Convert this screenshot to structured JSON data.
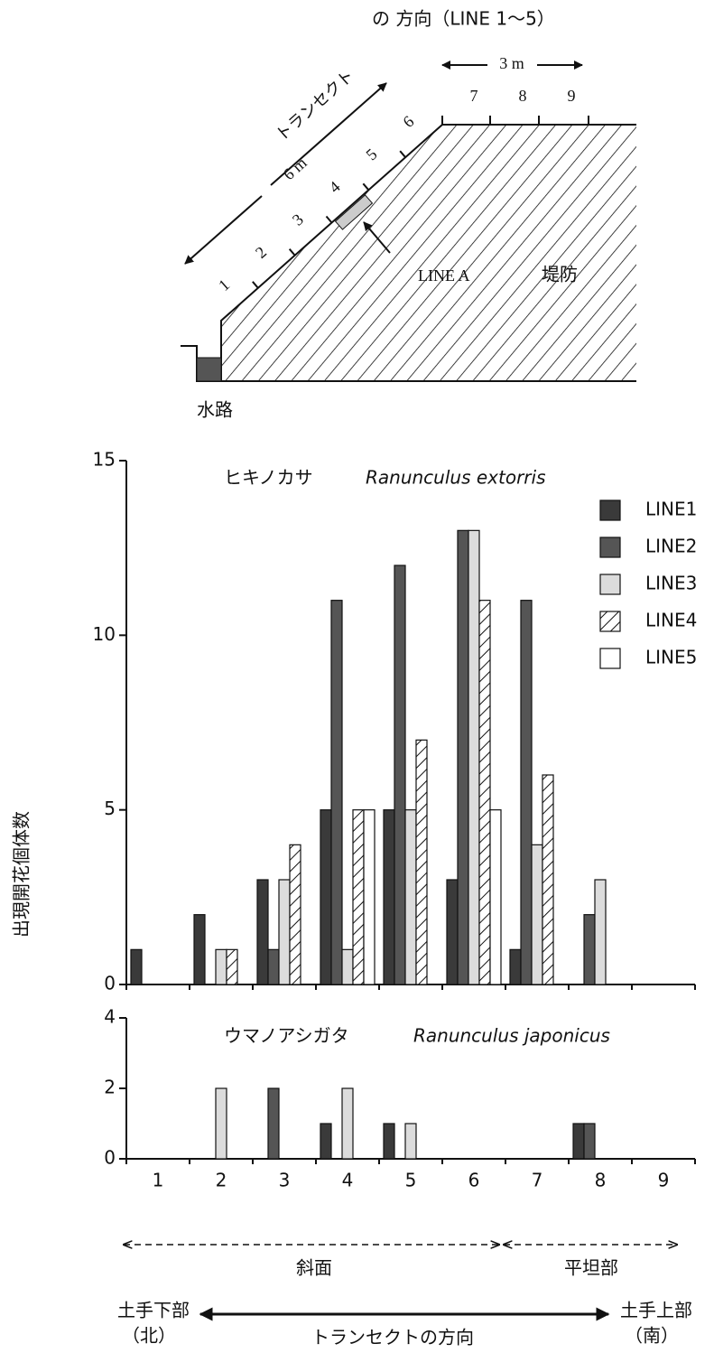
{
  "diagram": {
    "direction_word": "トランセクト",
    "direction_label": "の 方向（LINE 1～5）",
    "top_length": "3 m",
    "slope_length": "6 m",
    "slope_ticks": [
      "1",
      "2",
      "3",
      "4",
      "5",
      "6"
    ],
    "top_ticks": [
      "7",
      "8",
      "9"
    ],
    "line_a": "LINE A",
    "bank": "堤防",
    "channel": "水路"
  },
  "y_label": "出現開花個体数",
  "chart_data": [
    {
      "type": "bar",
      "title": "ヒキノカサ",
      "title_latin": "Ranunculus extorris",
      "ylim": [
        0,
        15
      ],
      "yticks": [
        0,
        5,
        10,
        15
      ],
      "legend": "upper right",
      "series": [
        {
          "name": "LINE1",
          "color": "#3a3a3a",
          "values": [
            1,
            2,
            3,
            5,
            5,
            3,
            1,
            0,
            0
          ]
        },
        {
          "name": "LINE2",
          "color": "#555555",
          "values": [
            0,
            0,
            1,
            11,
            12,
            13,
            11,
            2,
            0
          ]
        },
        {
          "name": "LINE3",
          "color": "#dcdcdc",
          "values": [
            0,
            1,
            3,
            1,
            5,
            13,
            4,
            3,
            0
          ]
        },
        {
          "name": "LINE4",
          "color": "#ffffff",
          "hatch": true,
          "values": [
            0,
            1,
            4,
            5,
            7,
            11,
            6,
            0,
            0
          ]
        },
        {
          "name": "LINE5",
          "color": "#ffffff",
          "values": [
            0,
            0,
            0,
            5,
            0,
            5,
            0,
            0,
            0
          ]
        }
      ]
    },
    {
      "type": "bar",
      "title": "ウマノアシガタ",
      "title_latin": "Ranunculus japonicus",
      "categories": [
        "1",
        "2",
        "3",
        "4",
        "5",
        "6",
        "7",
        "8",
        "9"
      ],
      "ylim": [
        0,
        4
      ],
      "yticks": [
        0,
        2,
        4
      ],
      "series": [
        {
          "name": "LINE1",
          "color": "#3a3a3a",
          "values": [
            0,
            0,
            0,
            1,
            1,
            0,
            0,
            1,
            0
          ]
        },
        {
          "name": "LINE2",
          "color": "#555555",
          "values": [
            0,
            0,
            2,
            0,
            0,
            0,
            0,
            1,
            0
          ]
        },
        {
          "name": "LINE3",
          "color": "#dcdcdc",
          "values": [
            0,
            2,
            0,
            2,
            1,
            0,
            0,
            0,
            0
          ]
        },
        {
          "name": "LINE4",
          "color": "#ffffff",
          "hatch": true,
          "values": [
            0,
            0,
            0,
            0,
            0,
            0,
            0,
            0,
            0
          ]
        },
        {
          "name": "LINE5",
          "color": "#ffffff",
          "values": [
            0,
            0,
            0,
            0,
            0,
            0,
            0,
            0,
            0
          ]
        }
      ]
    }
  ],
  "footer": {
    "slope": "斜面",
    "flat": "平坦部",
    "lower": "土手下部",
    "north": "（北）",
    "upper": "土手上部",
    "south": "（南）",
    "direction": "トランセクトの方向"
  }
}
